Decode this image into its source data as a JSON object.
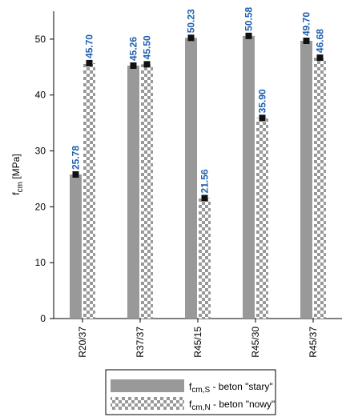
{
  "chart_data": {
    "type": "bar",
    "categories": [
      "R20/37",
      "R37/37",
      "R45/15",
      "R45/30",
      "R45/37"
    ],
    "series": [
      {
        "name": "fcm,S - beton \"stary\"",
        "legend_main": "f",
        "legend_sub": "cm,S",
        "legend_rest": " - beton \"stary\"",
        "values": [
          25.78,
          45.26,
          50.23,
          50.58,
          49.7
        ],
        "pattern": "solid",
        "color": "#999999"
      },
      {
        "name": "fcm,N - beton \"nowy\"",
        "legend_main": "f",
        "legend_sub": "cm,N",
        "legend_rest": " - beton \"nowy\"",
        "values": [
          45.7,
          45.5,
          21.56,
          35.9,
          46.68
        ],
        "pattern": "checker",
        "color": "#999999"
      }
    ],
    "data_labels": {
      "S": [
        "25.78",
        "45.26",
        "50.23",
        "50.58",
        "49.70"
      ],
      "N": [
        "45.70",
        "45.50",
        "21.56",
        "35.90",
        "46.68"
      ]
    },
    "ylabel_main": "f",
    "ylabel_sub": "cm",
    "ylabel_rest": " [MPa]",
    "ylim": [
      0,
      55
    ],
    "yticks": [
      "0",
      "10",
      "20",
      "30",
      "40",
      "50"
    ],
    "label_color": "#1f5fae",
    "marker_color": "#111111",
    "legend_position": "bottom-center"
  }
}
